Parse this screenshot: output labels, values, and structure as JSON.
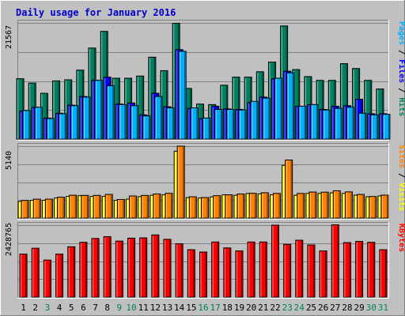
{
  "chart_data": {
    "type": "bar",
    "title": "Daily usage for January 2016",
    "categories": [
      "1",
      "2",
      "3",
      "4",
      "5",
      "6",
      "7",
      "8",
      "9",
      "10",
      "11",
      "12",
      "13",
      "14",
      "15",
      "16",
      "17",
      "18",
      "19",
      "20",
      "21",
      "22",
      "23",
      "24",
      "25",
      "26",
      "27",
      "28",
      "29",
      "30",
      "31"
    ],
    "weekend_days": [
      "3",
      "9",
      "10",
      "16",
      "17",
      "23",
      "24",
      "30",
      "31"
    ],
    "panels": [
      {
        "name": "hits-files-pages",
        "max_label": "21567",
        "ylim": [
          0,
          21567
        ],
        "legend": [
          {
            "text": "Pages",
            "color": "#00b0ff"
          },
          {
            "text": " / ",
            "color": "#000000"
          },
          {
            "text": "Files",
            "color": "#0000ff"
          },
          {
            "text": " / ",
            "color": "#000000"
          },
          {
            "text": "Hits",
            "color": "#008060"
          }
        ],
        "series": [
          {
            "name": "Hits",
            "color": "#008060",
            "values": [
              11200,
              10400,
              8500,
              10800,
              11000,
              12800,
              16900,
              20000,
              11300,
              11300,
              11700,
              15200,
              12700,
              21500,
              9400,
              6500,
              6400,
              10000,
              11500,
              11500,
              12500,
              14300,
              21000,
              12900,
              11600,
              10900,
              10900,
              14000,
              13100,
              10900,
              9300
            ]
          },
          {
            "name": "Files",
            "color": "#0000ff",
            "values": [
              5200,
              5900,
              3900,
              4800,
              6300,
              7900,
              10900,
              11500,
              6500,
              6700,
              4500,
              8500,
              6000,
              16600,
              5700,
              3800,
              6100,
              5600,
              5500,
              6800,
              7800,
              11200,
              12600,
              6100,
              6400,
              5500,
              6100,
              6200,
              7400,
              4700,
              4700
            ]
          },
          {
            "name": "Pages",
            "color": "#00b0ff",
            "values": [
              5300,
              5900,
              3800,
              4700,
              6200,
              7800,
              10900,
              9900,
              6400,
              6200,
              4300,
              7900,
              5800,
              16300,
              5800,
              3900,
              5500,
              5500,
              5400,
              7000,
              7600,
              11300,
              12300,
              6100,
              6400,
              5400,
              5700,
              5900,
              4800,
              4500,
              4600
            ]
          }
        ]
      },
      {
        "name": "visits-sites",
        "max_label": "5140",
        "ylim": [
          0,
          5140
        ],
        "legend": [
          {
            "text": "Sites",
            "color": "#ff8000"
          },
          {
            "text": " / ",
            "color": "#000000"
          },
          {
            "text": "Visits",
            "color": "#ffff00"
          }
        ],
        "series": [
          {
            "name": "Visits",
            "color": "#ffff00",
            "values": [
              1190,
              1270,
              1270,
              1430,
              1550,
              1600,
              1550,
              1550,
              1270,
              1350,
              1530,
              1630,
              1660,
              4780,
              1460,
              1430,
              1510,
              1660,
              1630,
              1760,
              1730,
              1660,
              3770,
              1630,
              1760,
              1760,
              1800,
              1760,
              1640,
              1520,
              1580
            ]
          },
          {
            "name": "Sites",
            "color": "#ff8000",
            "values": [
              1260,
              1350,
              1350,
              1490,
              1630,
              1620,
              1620,
              1690,
              1330,
              1580,
              1620,
              1720,
              1770,
              5140,
              1520,
              1470,
              1600,
              1660,
              1720,
              1770,
              1810,
              1760,
              4150,
              1760,
              1860,
              1850,
              1950,
              1870,
              1690,
              1540,
              1640
            ]
          }
        ]
      },
      {
        "name": "kbytes",
        "max_label": "2428765",
        "ylim": [
          0,
          2428765
        ],
        "legend": [
          {
            "text": "KBytes",
            "color": "#ff0000"
          }
        ],
        "series": [
          {
            "name": "KBytes",
            "color": "#ff0000",
            "values": [
              1450000,
              1650000,
              1250000,
              1450000,
              1700000,
              1850000,
              1980000,
              2040000,
              1890000,
              1990000,
              2000000,
              2100000,
              1950000,
              1800000,
              1600000,
              1520000,
              1860000,
              1660000,
              1560000,
              1860000,
              1860000,
              2428765,
              1780000,
              1920000,
              1760000,
              1560000,
              2440000,
              1840000,
              1880000,
              1850000,
              1600000
            ]
          }
        ]
      }
    ]
  }
}
